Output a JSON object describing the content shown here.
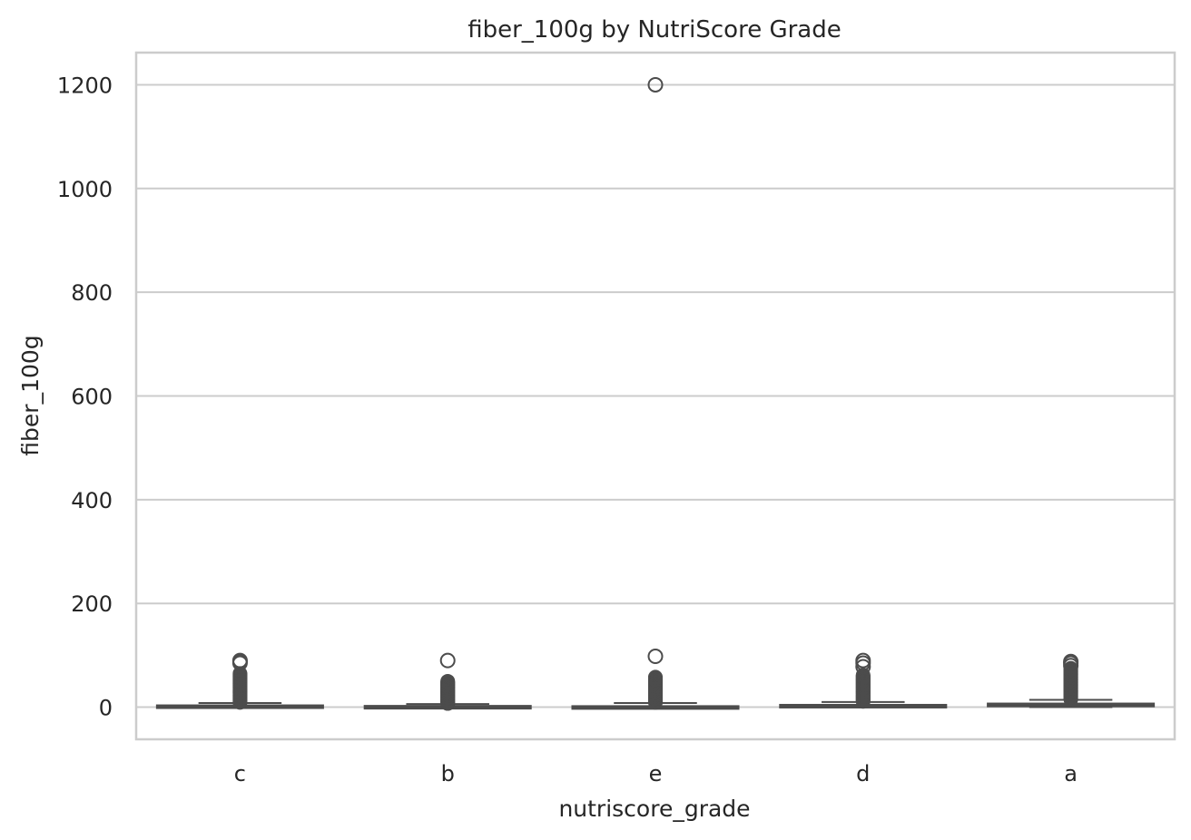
{
  "chart_data": {
    "type": "box",
    "title": "fiber_100g by NutriScore Grade",
    "xlabel": "nutriscore_grade",
    "ylabel": "fiber_100g",
    "categories": [
      "c",
      "b",
      "e",
      "d",
      "a"
    ],
    "ylim": [
      -62,
      1262
    ],
    "yticks": [
      0,
      200,
      400,
      600,
      800,
      1000,
      1200
    ],
    "grid": true,
    "boxes": [
      {
        "category": "c",
        "q1": 0.5,
        "median": 1.5,
        "q3": 3.5,
        "whisker_low": 0,
        "whisker_high": 8,
        "outlier_min": 9,
        "outlier_max": 65,
        "outliers": [
          85,
          88,
          90
        ]
      },
      {
        "category": "b",
        "q1": 0.2,
        "median": 0.8,
        "q3": 2.5,
        "whisker_low": 0,
        "whisker_high": 6,
        "outlier_min": 7,
        "outlier_max": 50,
        "outliers": [
          90
        ]
      },
      {
        "category": "e",
        "q1": 0.1,
        "median": 0.5,
        "q3": 2.0,
        "whisker_low": 0,
        "whisker_high": 8,
        "outlier_min": 9,
        "outlier_max": 58,
        "outliers": [
          98,
          1200
        ]
      },
      {
        "category": "d",
        "q1": 0.6,
        "median": 2.0,
        "q3": 4.5,
        "whisker_low": 0,
        "whisker_high": 10,
        "outlier_min": 11,
        "outlier_max": 62,
        "outliers": [
          78,
          85,
          90
        ]
      },
      {
        "category": "a",
        "q1": 1.5,
        "median": 3.5,
        "q3": 7.0,
        "whisker_low": 0,
        "whisker_high": 14,
        "outlier_min": 15,
        "outlier_max": 75,
        "outliers": [
          80,
          85,
          88
        ]
      }
    ]
  }
}
